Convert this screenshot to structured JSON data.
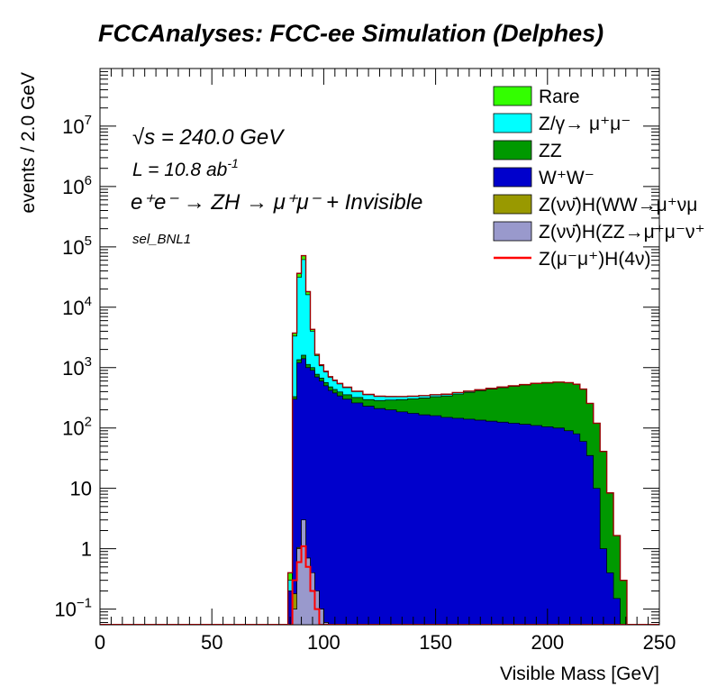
{
  "chart_data": {
    "type": "area",
    "title": "FCCAnalyses: FCC-ee Simulation (Delphes)",
    "xlabel": "Visible Mass [GeV]",
    "ylabel": "events / 2.0 GeV",
    "xlim": [
      0,
      250
    ],
    "ylim": [
      0.055,
      90000000
    ],
    "yscale": "log",
    "bin_width": 2.0,
    "x_ticks": [
      "0",
      "50",
      "100",
      "150",
      "200",
      "250"
    ],
    "y_ticks": [
      {
        "value": 0.1,
        "base": "10",
        "exp": "−1"
      },
      {
        "value": 1,
        "base": "1",
        "exp": ""
      },
      {
        "value": 10,
        "base": "10",
        "exp": ""
      },
      {
        "value": 100,
        "base": "10",
        "exp": "2"
      },
      {
        "value": 1000,
        "base": "10",
        "exp": "3"
      },
      {
        "value": 10000,
        "base": "10",
        "exp": "4"
      },
      {
        "value": 100000,
        "base": "10",
        "exp": "5"
      },
      {
        "value": 1000000,
        "base": "10",
        "exp": "6"
      },
      {
        "value": 10000000,
        "base": "10",
        "exp": "7"
      }
    ],
    "annotations": {
      "sqrt_s": "√s = 240.0 GeV",
      "lumi": "L = 10.8 ab",
      "lumi_exp": "-1",
      "process": "e⁺e⁻ → ZH → μ⁺μ⁻ + Invisible",
      "selection": "sel_BNL1"
    },
    "legend_position": "top-right",
    "x": [
      85,
      87,
      89,
      91,
      93,
      95,
      97,
      99,
      101,
      103,
      105,
      107,
      110,
      115,
      120,
      125,
      130,
      135,
      140,
      145,
      150,
      155,
      160,
      165,
      170,
      175,
      180,
      185,
      190,
      195,
      200,
      205,
      210,
      213,
      216,
      219,
      222,
      225,
      228,
      231,
      234,
      237
    ],
    "series": [
      {
        "name": "Z(νν̄)H(ZZ→μ⁺μ⁻ν⁺",
        "color": "#9999cc",
        "values": [
          0,
          0.1,
          1,
          3,
          0.7,
          0.4,
          0.2,
          0.1,
          0.06,
          0,
          0,
          0,
          0,
          0,
          0,
          0,
          0,
          0,
          0,
          0,
          0,
          0,
          0,
          0,
          0,
          0,
          0,
          0,
          0,
          0,
          0,
          0,
          0,
          0,
          0,
          0,
          0,
          0,
          0,
          0,
          0,
          0
        ]
      },
      {
        "name": "Z(νν̄)H(WW→μ⁺νμ",
        "color": "#999900",
        "values": [
          0,
          0.08,
          0.05,
          0,
          0,
          0,
          0,
          0,
          0,
          0,
          0,
          0,
          0,
          0,
          0,
          0,
          0,
          0,
          0,
          0,
          0,
          0,
          0,
          0,
          0,
          0,
          0,
          0,
          0,
          0,
          0,
          0,
          0,
          0,
          0,
          0,
          0,
          0,
          0,
          0,
          0,
          0
        ]
      },
      {
        "name": "W⁺W⁻",
        "color": "#0000cc",
        "values": [
          0.2,
          300,
          1200,
          1400,
          1000,
          900,
          700,
          600,
          500,
          420,
          380,
          340,
          300,
          260,
          230,
          210,
          200,
          185,
          175,
          165,
          160,
          150,
          145,
          140,
          135,
          130,
          125,
          120,
          115,
          110,
          105,
          100,
          90,
          80,
          60,
          35,
          10,
          1,
          0.4,
          0.15,
          0,
          0
        ]
      },
      {
        "name": "ZZ",
        "color": "#009900",
        "values": [
          0,
          30,
          150,
          200,
          130,
          100,
          75,
          70,
          65,
          60,
          55,
          55,
          55,
          60,
          65,
          75,
          90,
          110,
          130,
          150,
          170,
          190,
          220,
          250,
          280,
          310,
          340,
          370,
          400,
          430,
          450,
          470,
          470,
          450,
          380,
          220,
          110,
          40,
          8,
          1.5,
          0.3,
          0
        ]
      },
      {
        "name": "Z/γ→ μ⁺μ⁻",
        "color": "#00ffff",
        "values": [
          0.1,
          3000,
          30000,
          60000,
          15000,
          3000,
          800,
          400,
          280,
          210,
          170,
          140,
          110,
          80,
          60,
          48,
          40,
          35,
          30,
          27,
          25,
          22,
          20,
          17,
          15,
          13,
          12,
          10,
          9,
          8,
          7,
          6,
          3,
          1.5,
          0.5,
          0.2,
          0,
          0,
          0,
          0,
          0,
          0
        ]
      },
      {
        "name": "Rare",
        "color": "#33ff00",
        "values": [
          0.1,
          400,
          5000,
          10000,
          2000,
          300,
          80,
          40,
          25,
          18,
          14,
          11,
          9,
          7,
          5,
          3.5,
          2.5,
          2,
          1.5,
          1.2,
          1,
          0.8,
          0.7,
          0.6,
          0.5,
          0.4,
          0.3,
          0.2,
          0.15,
          0.1,
          0.07,
          0,
          0,
          0,
          0,
          0,
          0,
          0,
          0,
          0,
          0,
          0
        ]
      }
    ],
    "signal": {
      "name": "Z(μ⁻μ⁺)H(4ν)",
      "color": "#ff0000",
      "values": [
        0,
        0.3,
        0.6,
        1.1,
        0.5,
        0.2,
        0.1,
        0,
        0,
        0,
        0,
        0,
        0,
        0,
        0,
        0,
        0,
        0,
        0,
        0,
        0,
        0,
        0,
        0,
        0,
        0,
        0,
        0,
        0,
        0,
        0,
        0,
        0,
        0,
        0,
        0,
        0,
        0,
        0,
        0,
        0,
        0
      ]
    }
  }
}
